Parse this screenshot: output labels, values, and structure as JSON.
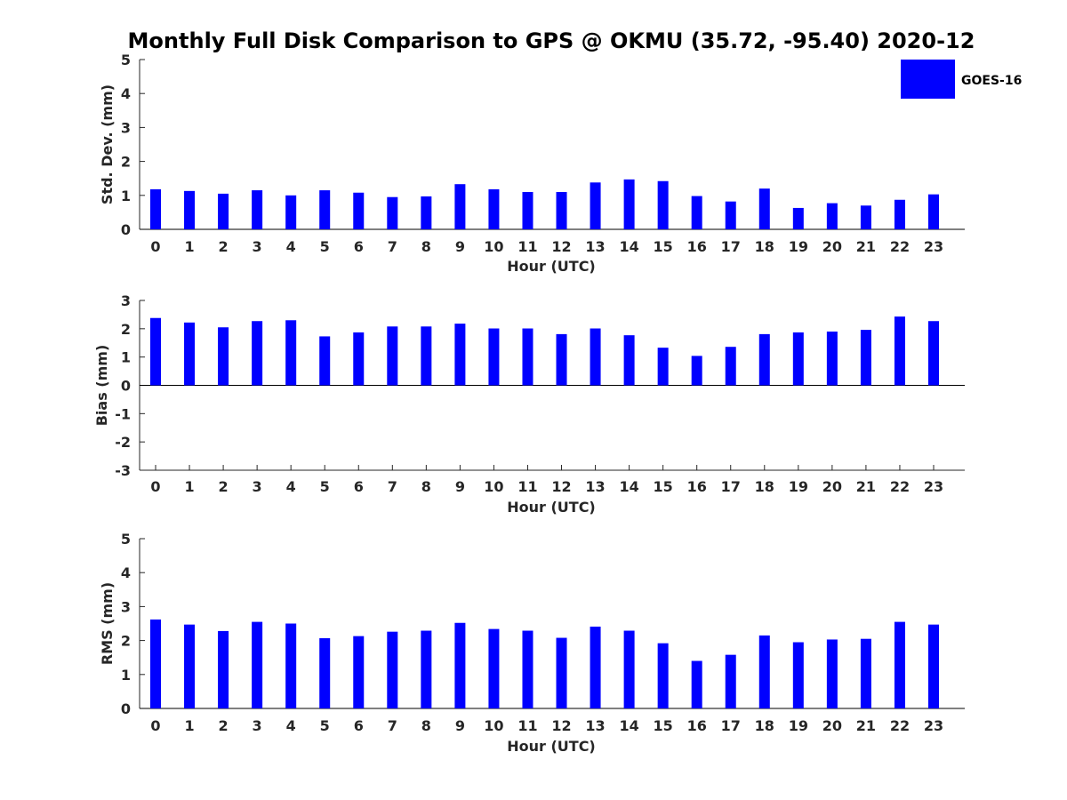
{
  "figure": {
    "title": "Monthly Full Disk Comparison to GPS @ OKMU (35.72, -95.40) 2020-12",
    "legend": {
      "label": "GOES-16",
      "color": "#0000ff",
      "placement": "top-right"
    }
  },
  "chart_data": [
    {
      "type": "bar",
      "xlabel": "Hour (UTC)",
      "ylabel": "Std. Dev. (mm)",
      "ylim": [
        0,
        5
      ],
      "yticks": [
        0,
        1,
        2,
        3,
        4,
        5
      ],
      "categories": [
        "0",
        "1",
        "2",
        "3",
        "4",
        "5",
        "6",
        "7",
        "8",
        "9",
        "10",
        "11",
        "12",
        "13",
        "14",
        "15",
        "16",
        "17",
        "18",
        "19",
        "20",
        "21",
        "22",
        "23"
      ],
      "series": [
        {
          "name": "GOES-16",
          "color": "#0000ff",
          "values": [
            1.18,
            1.13,
            1.05,
            1.15,
            1.0,
            1.15,
            1.08,
            0.95,
            0.97,
            1.33,
            1.18,
            1.1,
            1.1,
            1.38,
            1.47,
            1.42,
            0.98,
            0.82,
            1.2,
            0.63,
            0.77,
            0.7,
            0.87,
            1.03
          ]
        }
      ]
    },
    {
      "type": "bar",
      "xlabel": "Hour (UTC)",
      "ylabel": "Bias (mm)",
      "ylim": [
        -3,
        3
      ],
      "yticks": [
        -3,
        -2,
        -1,
        0,
        1,
        2,
        3
      ],
      "categories": [
        "0",
        "1",
        "2",
        "3",
        "4",
        "5",
        "6",
        "7",
        "8",
        "9",
        "10",
        "11",
        "12",
        "13",
        "14",
        "15",
        "16",
        "17",
        "18",
        "19",
        "20",
        "21",
        "22",
        "23"
      ],
      "series": [
        {
          "name": "GOES-16",
          "color": "#0000ff",
          "values": [
            2.38,
            2.22,
            2.05,
            2.27,
            2.3,
            1.73,
            1.87,
            2.08,
            2.08,
            2.18,
            2.01,
            2.01,
            1.81,
            2.01,
            1.77,
            1.33,
            1.04,
            1.36,
            1.81,
            1.87,
            1.9,
            1.96,
            2.43,
            2.27
          ]
        }
      ]
    },
    {
      "type": "bar",
      "xlabel": "Hour (UTC)",
      "ylabel": "RMS (mm)",
      "ylim": [
        0,
        5
      ],
      "yticks": [
        0,
        1,
        2,
        3,
        4,
        5
      ],
      "categories": [
        "0",
        "1",
        "2",
        "3",
        "4",
        "5",
        "6",
        "7",
        "8",
        "9",
        "10",
        "11",
        "12",
        "13",
        "14",
        "15",
        "16",
        "17",
        "18",
        "19",
        "20",
        "21",
        "22",
        "23"
      ],
      "series": [
        {
          "name": "GOES-16",
          "color": "#0000ff",
          "values": [
            2.62,
            2.47,
            2.28,
            2.55,
            2.5,
            2.07,
            2.13,
            2.26,
            2.29,
            2.52,
            2.34,
            2.29,
            2.08,
            2.41,
            2.29,
            1.92,
            1.4,
            1.58,
            2.15,
            1.95,
            2.03,
            2.05,
            2.55,
            2.47
          ]
        }
      ]
    }
  ]
}
